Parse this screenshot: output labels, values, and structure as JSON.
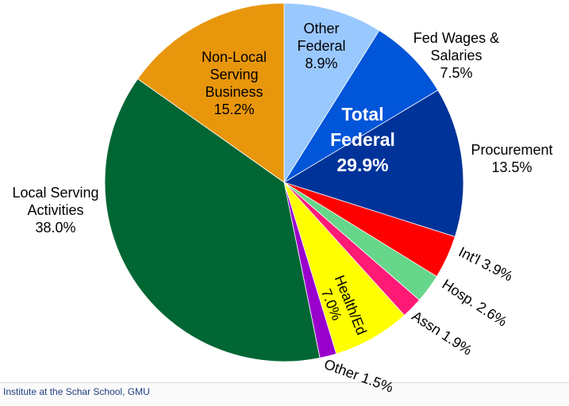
{
  "chart_data": {
    "type": "pie",
    "categories": [
      "Other Federal",
      "Fed Wages & Salaries",
      "Procurement",
      "Int'l",
      "Hosp.",
      "Assn",
      "Health/Ed",
      "Other",
      "Local Serving Activities",
      "Non-Local Serving Business"
    ],
    "values": [
      8.9,
      7.5,
      13.5,
      3.9,
      2.6,
      1.9,
      7.0,
      1.5,
      38.0,
      15.2
    ],
    "value_labels": [
      "8.9%",
      "7.5%",
      "13.5%",
      "3.9%",
      "2.6%",
      "1.9%",
      "7.0%",
      "1.5%",
      "38.0%",
      "15.2%"
    ],
    "colors": [
      "#99c8ff",
      "#0055d9",
      "#003399",
      "#ff0000",
      "#66d68a",
      "#ff1a75",
      "#ffff00",
      "#9900cc",
      "#006633",
      "#e8960c"
    ],
    "annotation": {
      "text": "Total Federal",
      "value_label": "29.9%"
    },
    "source": "Institute at the Schar School, GMU"
  }
}
